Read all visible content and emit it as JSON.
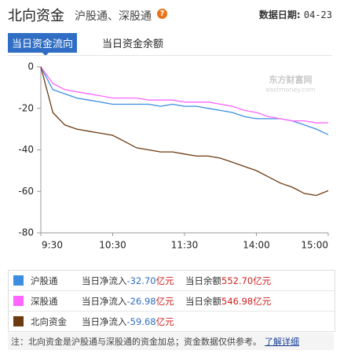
{
  "header": {
    "title": "北向资金",
    "subtitle": "沪股通、深股通",
    "help_icon": "?",
    "date_label": "数据日期:",
    "date": "04-23"
  },
  "tabs": [
    "当日资金流向",
    "当日资金余额"
  ],
  "watermark": {
    "brand": "东方财富网",
    "site": "eastmoney.com"
  },
  "chart_data": {
    "type": "line",
    "x": [
      0,
      10,
      20,
      30,
      40,
      50,
      60,
      70,
      80,
      90,
      100,
      110,
      120,
      130,
      140,
      150,
      160,
      170,
      180,
      190,
      200,
      210,
      220,
      230,
      240
    ],
    "xlim": [
      0,
      240
    ],
    "xticks": [
      {
        "value": 0,
        "label": "9:30"
      },
      {
        "value": 60,
        "label": "10:30"
      },
      {
        "value": 120,
        "label": "11:30"
      },
      {
        "value": 180,
        "label": "14:00"
      },
      {
        "value": 240,
        "label": "15:00"
      }
    ],
    "ylim": [
      -80,
      0
    ],
    "yticks": [
      0,
      -20,
      -40,
      -60,
      -80
    ],
    "series": [
      {
        "name": "沪股通",
        "color": "#3b8ee0",
        "values": [
          0,
          -11,
          -13,
          -15,
          -16,
          -17,
          -18,
          -18,
          -18,
          -18,
          -19,
          -18,
          -19,
          -19,
          -20,
          -21,
          -22,
          -24,
          -25,
          -25,
          -25,
          -26,
          -28,
          -30,
          -32.7
        ]
      },
      {
        "name": "深股通",
        "color": "#ff66ff",
        "values": [
          0,
          -8,
          -11,
          -12,
          -13,
          -14,
          -15,
          -15,
          -15,
          -16,
          -16,
          -16,
          -17,
          -17,
          -17,
          -18,
          -19,
          -21,
          -22,
          -24,
          -25,
          -26,
          -26,
          -27,
          -26.98
        ]
      },
      {
        "name": "北向资金",
        "color": "#6b3a10",
        "values": [
          0,
          -22,
          -28,
          -30,
          -31,
          -32,
          -33,
          -36,
          -39,
          -40,
          -41,
          -41,
          -42,
          -43,
          -43,
          -44,
          -46,
          -48,
          -50,
          -53,
          -56,
          -58,
          -61,
          -62,
          -59.68
        ]
      }
    ]
  },
  "legend_rows": [
    {
      "inflow_label": "当日净流入",
      "inflow": "-32.70",
      "inflow_unit": "亿元",
      "balance_label": "当日余额",
      "balance": "552.70",
      "balance_unit": "亿元"
    },
    {
      "inflow_label": "当日净流入",
      "inflow": "-26.98",
      "inflow_unit": "亿元",
      "balance_label": "当日余额",
      "balance": "546.98",
      "balance_unit": "亿元"
    },
    {
      "inflow_label": "当日净流入",
      "inflow": "-59.68",
      "inflow_unit": "亿元"
    }
  ],
  "footer": {
    "note": "注：北向资金是沪股通与深股通的资金加总；资金数据仅供参考。",
    "link": "了解详细"
  }
}
